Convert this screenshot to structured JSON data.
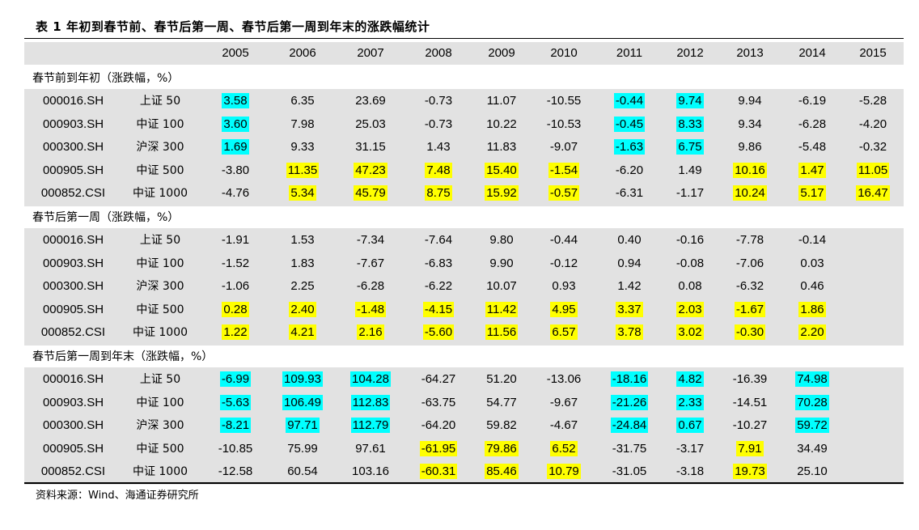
{
  "title": "表 1 年初到春节前、春节后第一周、春节后第一周到年末的涨跌幅统计",
  "years": [
    "2005",
    "2006",
    "2007",
    "2008",
    "2009",
    "2010",
    "2011",
    "2012",
    "2013",
    "2014",
    "2015"
  ],
  "colors": {
    "band": "#e2e2e2",
    "yellow": "#ffff00",
    "cyan": "#00ffff"
  },
  "sections": [
    {
      "label": "春节前到年初（涨跌幅，%）",
      "rows": [
        {
          "code": "000016.SH",
          "name": "上证 50",
          "values": [
            "3.58",
            "6.35",
            "23.69",
            "-0.73",
            "11.07",
            "-10.55",
            "-0.44",
            "9.74",
            "9.94",
            "-6.19",
            "-5.28"
          ],
          "highlights": [
            "c",
            "",
            "",
            "",
            "",
            "",
            "c",
            "c",
            "",
            "",
            ""
          ]
        },
        {
          "code": "000903.SH",
          "name": "中证 100",
          "values": [
            "3.60",
            "7.98",
            "25.03",
            "-0.73",
            "10.22",
            "-10.53",
            "-0.45",
            "8.33",
            "9.34",
            "-6.28",
            "-4.20"
          ],
          "highlights": [
            "c",
            "",
            "",
            "",
            "",
            "",
            "c",
            "c",
            "",
            "",
            ""
          ]
        },
        {
          "code": "000300.SH",
          "name": "沪深 300",
          "values": [
            "1.69",
            "9.33",
            "31.15",
            "1.43",
            "11.83",
            "-9.07",
            "-1.63",
            "6.75",
            "9.86",
            "-5.48",
            "-0.32"
          ],
          "highlights": [
            "c",
            "",
            "",
            "",
            "",
            "",
            "c",
            "c",
            "",
            "",
            ""
          ]
        },
        {
          "code": "000905.SH",
          "name": "中证 500",
          "values": [
            "-3.80",
            "11.35",
            "47.23",
            "7.48",
            "15.40",
            "-1.54",
            "-6.20",
            "1.49",
            "10.16",
            "1.47",
            "11.05"
          ],
          "highlights": [
            "",
            "y",
            "y",
            "y",
            "y",
            "y",
            "",
            "",
            "y",
            "y",
            "y"
          ]
        },
        {
          "code": "000852.CSI",
          "name": "中证 1000",
          "values": [
            "-4.76",
            "5.34",
            "45.79",
            "8.75",
            "15.92",
            "-0.57",
            "-6.31",
            "-1.17",
            "10.24",
            "5.17",
            "16.47"
          ],
          "highlights": [
            "",
            "y",
            "y",
            "y",
            "y",
            "y",
            "",
            "",
            "y",
            "y",
            "y"
          ]
        }
      ]
    },
    {
      "label": "春节后第一周（涨跌幅，%）",
      "rows": [
        {
          "code": "000016.SH",
          "name": "上证 50",
          "values": [
            "-1.91",
            "1.53",
            "-7.34",
            "-7.64",
            "9.80",
            "-0.44",
            "0.40",
            "-0.16",
            "-7.78",
            "-0.14",
            ""
          ],
          "highlights": [
            "",
            "",
            "",
            "",
            "",
            "",
            "",
            "",
            "",
            "",
            ""
          ]
        },
        {
          "code": "000903.SH",
          "name": "中证 100",
          "values": [
            "-1.52",
            "1.83",
            "-7.67",
            "-6.83",
            "9.90",
            "-0.12",
            "0.94",
            "-0.08",
            "-7.06",
            "0.03",
            ""
          ],
          "highlights": [
            "",
            "",
            "",
            "",
            "",
            "",
            "",
            "",
            "",
            "",
            ""
          ]
        },
        {
          "code": "000300.SH",
          "name": "沪深 300",
          "values": [
            "-1.06",
            "2.25",
            "-6.28",
            "-6.22",
            "10.07",
            "0.93",
            "1.42",
            "0.08",
            "-6.32",
            "0.46",
            ""
          ],
          "highlights": [
            "",
            "",
            "",
            "",
            "",
            "",
            "",
            "",
            "",
            "",
            ""
          ]
        },
        {
          "code": "000905.SH",
          "name": "中证 500",
          "values": [
            "0.28",
            "2.40",
            "-1.48",
            "-4.15",
            "11.42",
            "4.95",
            "3.37",
            "2.03",
            "-1.67",
            "1.86",
            ""
          ],
          "highlights": [
            "y",
            "y",
            "y",
            "y",
            "y",
            "y",
            "y",
            "y",
            "y",
            "y",
            ""
          ]
        },
        {
          "code": "000852.CSI",
          "name": "中证 1000",
          "values": [
            "1.22",
            "4.21",
            "2.16",
            "-5.60",
            "11.56",
            "6.57",
            "3.78",
            "3.02",
            "-0.30",
            "2.20",
            ""
          ],
          "highlights": [
            "y",
            "y",
            "y",
            "y",
            "y",
            "y",
            "y",
            "y",
            "y",
            "y",
            ""
          ]
        }
      ]
    },
    {
      "label": "春节后第一周到年末（涨跌幅，%）",
      "rows": [
        {
          "code": "000016.SH",
          "name": "上证 50",
          "values": [
            "-6.99",
            "109.93",
            "104.28",
            "-64.27",
            "51.20",
            "-13.06",
            "-18.16",
            "4.82",
            "-16.39",
            "74.98",
            ""
          ],
          "highlights": [
            "c",
            "c",
            "c",
            "",
            "",
            "",
            "c",
            "c",
            "",
            "c",
            ""
          ]
        },
        {
          "code": "000903.SH",
          "name": "中证 100",
          "values": [
            "-5.63",
            "106.49",
            "112.83",
            "-63.75",
            "54.77",
            "-9.67",
            "-21.26",
            "2.33",
            "-14.51",
            "70.28",
            ""
          ],
          "highlights": [
            "c",
            "c",
            "c",
            "",
            "",
            "",
            "c",
            "c",
            "",
            "c",
            ""
          ]
        },
        {
          "code": "000300.SH",
          "name": "沪深 300",
          "values": [
            "-8.21",
            "97.71",
            "112.79",
            "-64.20",
            "59.82",
            "-4.67",
            "-24.84",
            "0.67",
            "-10.27",
            "59.72",
            ""
          ],
          "highlights": [
            "c",
            "c",
            "c",
            "",
            "",
            "",
            "c",
            "c",
            "",
            "c",
            ""
          ]
        },
        {
          "code": "000905.SH",
          "name": "中证 500",
          "values": [
            "-10.85",
            "75.99",
            "97.61",
            "-61.95",
            "79.86",
            "6.52",
            "-31.75",
            "-3.17",
            "7.91",
            "34.49",
            ""
          ],
          "highlights": [
            "",
            "",
            "",
            "y",
            "y",
            "y",
            "",
            "",
            "y",
            "",
            ""
          ]
        },
        {
          "code": "000852.CSI",
          "name": "中证 1000",
          "values": [
            "-12.58",
            "60.54",
            "103.16",
            "-60.31",
            "85.46",
            "10.79",
            "-31.05",
            "-3.18",
            "19.73",
            "25.10",
            ""
          ],
          "highlights": [
            "",
            "",
            "",
            "y",
            "y",
            "y",
            "",
            "",
            "y",
            "",
            ""
          ]
        }
      ]
    }
  ],
  "source": "资料来源：Wind、海通证券研究所"
}
